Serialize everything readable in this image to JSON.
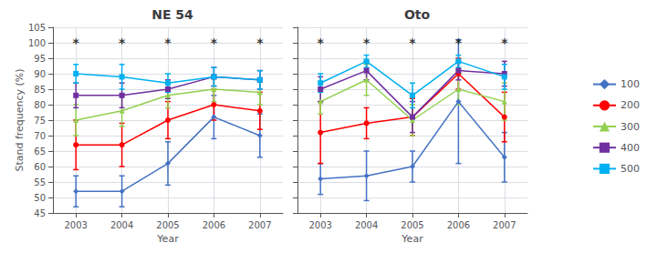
{
  "chart_data": [
    {
      "type": "line",
      "title": "NE 54",
      "xlabel": "Year",
      "ylabel": "Stand frequency (%)",
      "x": [
        2003,
        2004,
        2005,
        2006,
        2007
      ],
      "xlim": [
        2002.5,
        2007.5
      ],
      "xticks": [
        2003,
        2004,
        2005,
        2006,
        2007
      ],
      "ylim": [
        45,
        105
      ],
      "yticks": [
        45,
        50,
        55,
        60,
        65,
        70,
        75,
        80,
        85,
        90,
        95,
        100,
        105
      ],
      "grid": true,
      "legend": "right",
      "series": [
        {
          "name": "100",
          "color": "#4472C4",
          "marker": "diamond",
          "values": [
            52,
            52,
            61,
            76,
            70
          ],
          "errors": [
            5,
            5,
            7,
            7,
            7
          ]
        },
        {
          "name": "200",
          "color": "#FF0000",
          "marker": "circle",
          "values": [
            67,
            67,
            75,
            80,
            78
          ],
          "errors": [
            8,
            7,
            6,
            5,
            6
          ]
        },
        {
          "name": "300",
          "color": "#92D050",
          "marker": "triangle",
          "values": [
            75,
            78,
            83,
            85,
            84
          ],
          "errors": [
            5,
            5,
            4,
            4,
            4
          ]
        },
        {
          "name": "400",
          "color": "#7030A0",
          "marker": "square",
          "values": [
            83,
            83,
            85,
            89,
            88
          ],
          "errors": [
            4,
            4,
            3,
            3,
            3
          ]
        },
        {
          "name": "500",
          "color": "#00B0F0",
          "marker": "square",
          "values": [
            90,
            89,
            87,
            89,
            88
          ],
          "errors": [
            3,
            4,
            3,
            3,
            3
          ]
        }
      ],
      "annotations": [
        {
          "x": 2003,
          "y": 98,
          "text": "*"
        },
        {
          "x": 2004,
          "y": 98,
          "text": "*"
        },
        {
          "x": 2005,
          "y": 98,
          "text": "*"
        },
        {
          "x": 2006,
          "y": 98,
          "text": "*"
        },
        {
          "x": 2007,
          "y": 98,
          "text": "*"
        }
      ]
    },
    {
      "type": "line",
      "title": "Oto",
      "xlabel": "Year",
      "x": [
        2003,
        2004,
        2005,
        2006,
        2007
      ],
      "xlim": [
        2002.5,
        2007.5
      ],
      "xticks": [
        2003,
        2004,
        2005,
        2006,
        2007
      ],
      "ylim": [
        45,
        105
      ],
      "yticks": [
        45,
        50,
        55,
        60,
        65,
        70,
        75,
        80,
        85,
        90,
        95,
        100,
        105
      ],
      "grid": true,
      "legend": "right",
      "tick_labels": "x",
      "series": [
        {
          "name": "100",
          "color": "#4472C4",
          "marker": "diamond",
          "values": [
            56,
            57,
            60,
            81,
            63
          ],
          "errors": [
            5,
            8,
            5,
            20,
            8
          ]
        },
        {
          "name": "200",
          "color": "#FF0000",
          "marker": "circle",
          "values": [
            71,
            74,
            76,
            90,
            76
          ],
          "errors": [
            10,
            5,
            6,
            5,
            8
          ]
        },
        {
          "name": "300",
          "color": "#92D050",
          "marker": "triangle",
          "values": [
            81,
            88,
            75,
            85,
            81
          ],
          "errors": [
            4,
            5,
            5,
            5,
            6
          ]
        },
        {
          "name": "400",
          "color": "#7030A0",
          "marker": "square",
          "values": [
            85,
            91,
            76,
            91,
            90
          ],
          "errors": [
            4,
            3,
            5,
            3,
            4
          ]
        },
        {
          "name": "500",
          "color": "#00B0F0",
          "marker": "square",
          "values": [
            87,
            94,
            83,
            94,
            89
          ],
          "errors": [
            3,
            2,
            4,
            2,
            4
          ]
        }
      ],
      "annotations": [
        {
          "x": 2003,
          "y": 98,
          "text": "*"
        },
        {
          "x": 2004,
          "y": 98,
          "text": "*"
        },
        {
          "x": 2005,
          "y": 98,
          "text": "*"
        },
        {
          "x": 2006,
          "y": 98,
          "text": "*"
        },
        {
          "x": 2007,
          "y": 98,
          "text": "*"
        }
      ]
    }
  ]
}
